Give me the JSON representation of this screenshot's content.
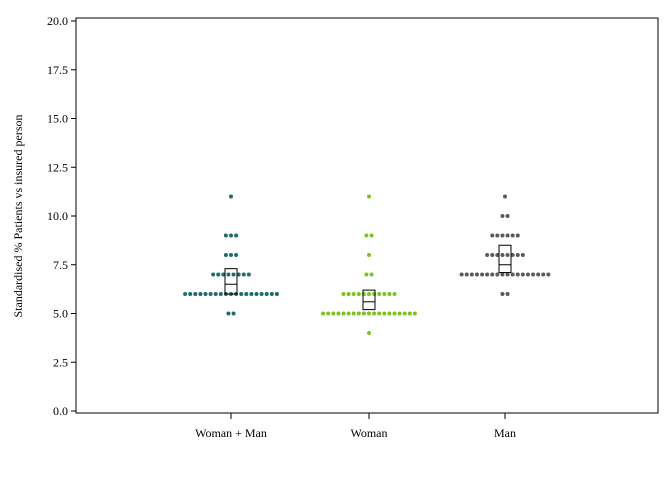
{
  "chart_data": {
    "type": "scatter",
    "chart_style": "dot-strip with box",
    "ylabel": "Standardised % Patients vs insured person",
    "ylim": [
      0,
      20
    ],
    "yticks": [
      0.0,
      2.5,
      5.0,
      7.5,
      10.0,
      12.5,
      15.0,
      17.5,
      20.0
    ],
    "ytick_labels": [
      "0.0",
      "2.5",
      "5.0",
      "7.5",
      "10.0",
      "12.5",
      "15.0",
      "17.5",
      "20.0"
    ],
    "categories": [
      "Woman + Man",
      "Woman",
      "Man"
    ],
    "grid": false,
    "series": [
      {
        "category": "Woman + Man",
        "color": "#1f6b6b",
        "values": [
          11,
          9,
          9,
          9,
          8,
          8,
          8,
          7,
          7,
          7,
          7,
          7,
          7,
          7,
          7,
          6,
          6,
          6,
          6,
          6,
          6,
          6,
          6,
          6,
          6,
          6,
          6,
          6,
          6,
          6,
          6,
          6,
          6,
          6,
          5,
          5
        ],
        "box": {
          "q1": 6.0,
          "median": 6.5,
          "q3": 7.3
        }
      },
      {
        "category": "Woman",
        "color": "#7dc31f",
        "values": [
          11,
          9,
          9,
          8,
          7,
          7,
          6,
          6,
          6,
          6,
          6,
          6,
          6,
          6,
          6,
          6,
          6,
          5,
          5,
          5,
          5,
          5,
          5,
          5,
          5,
          5,
          5,
          5,
          5,
          5,
          5,
          5,
          5,
          5,
          5,
          5,
          4
        ],
        "box": {
          "q1": 5.2,
          "median": 5.6,
          "q3": 6.2
        }
      },
      {
        "category": "Man",
        "color": "#5a5a5a",
        "values": [
          11,
          10,
          10,
          9,
          9,
          9,
          9,
          9,
          9,
          8,
          8,
          8,
          8,
          8,
          8,
          8,
          8,
          7,
          7,
          7,
          7,
          7,
          7,
          7,
          7,
          7,
          7,
          7,
          7,
          7,
          7,
          7,
          7,
          7,
          7,
          6,
          6
        ],
        "box": {
          "q1": 7.1,
          "median": 7.5,
          "q3": 8.5
        }
      }
    ]
  }
}
